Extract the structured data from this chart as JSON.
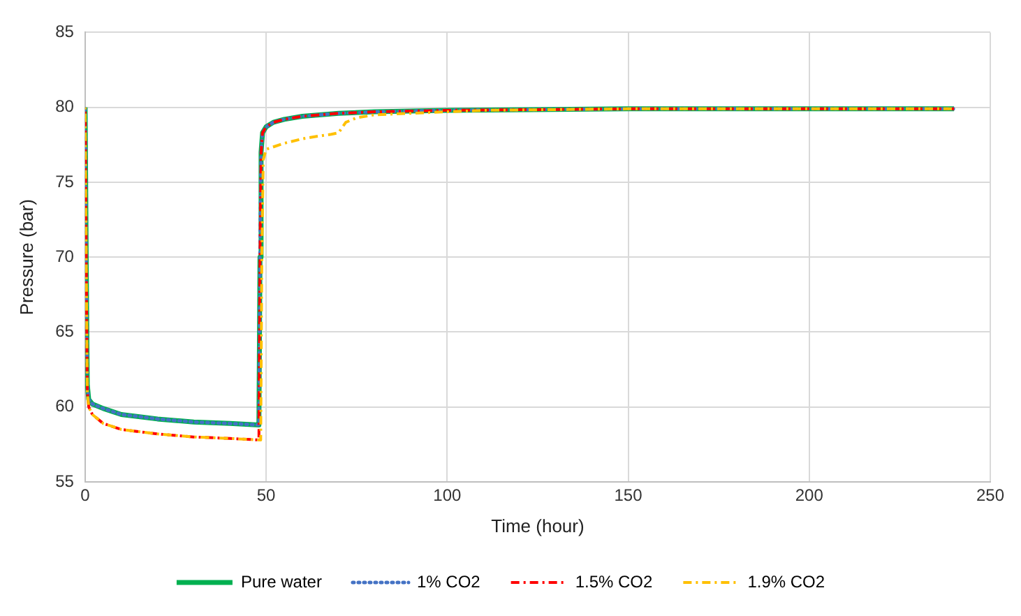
{
  "chart_data": {
    "type": "line",
    "xlabel": "Time (hour)",
    "ylabel": "Pressure (bar)",
    "xlim": [
      0,
      250
    ],
    "xticks": [
      0,
      50,
      100,
      150,
      200,
      250
    ],
    "ylim": [
      55,
      85
    ],
    "yticks": [
      55,
      60,
      65,
      70,
      75,
      80,
      85
    ],
    "grid": true,
    "legend": "bottom",
    "marker": "none",
    "series": [
      {
        "name": "Pure water",
        "color": "#00b050",
        "line_style": "solid",
        "x": [
          0,
          0.3,
          0.6,
          1,
          2,
          5,
          10,
          20,
          30,
          40,
          48,
          48.3,
          48.6,
          49,
          50,
          52,
          55,
          60,
          70,
          80,
          100,
          150,
          200,
          240
        ],
        "values": [
          80,
          70,
          61.5,
          60.5,
          60.2,
          59.9,
          59.5,
          59.2,
          59,
          58.9,
          58.8,
          70,
          77,
          78.3,
          78.7,
          79,
          79.2,
          79.4,
          79.6,
          79.7,
          79.8,
          79.9,
          79.9,
          79.9
        ]
      },
      {
        "name": "1% CO2",
        "color": "#4472c4",
        "line_style": "dotted",
        "x": [
          0,
          0.3,
          0.6,
          1,
          2,
          5,
          10,
          20,
          30,
          40,
          48,
          48.3,
          48.6,
          49,
          50,
          52,
          55,
          60,
          70,
          80,
          100,
          150,
          200,
          240
        ],
        "values": [
          80,
          70,
          61.5,
          60.5,
          60.2,
          59.9,
          59.5,
          59.2,
          59,
          58.9,
          58.8,
          70,
          77,
          78.3,
          78.7,
          79,
          79.2,
          79.4,
          79.6,
          79.7,
          79.8,
          79.9,
          79.9,
          79.9
        ]
      },
      {
        "name": "1.5% CO2",
        "color": "#ff0000",
        "line_style": "dashdot",
        "x": [
          0,
          0.3,
          0.6,
          1,
          2,
          5,
          10,
          20,
          30,
          40,
          48,
          48.3,
          48.6,
          49,
          50,
          52,
          55,
          60,
          70,
          80,
          100,
          150,
          200,
          240
        ],
        "values": [
          80,
          70,
          61,
          60,
          59.5,
          58.9,
          58.5,
          58.2,
          58,
          57.9,
          57.8,
          70,
          77,
          78.3,
          78.7,
          79,
          79.2,
          79.4,
          79.6,
          79.7,
          79.8,
          79.9,
          79.9,
          79.9
        ]
      },
      {
        "name": "1.9% CO2",
        "color": "#ffc000",
        "line_style": "dashdot",
        "x": [
          0,
          0.3,
          0.6,
          1,
          2,
          5,
          10,
          20,
          30,
          40,
          48.5,
          48.8,
          49.2,
          50,
          55,
          60,
          65,
          68,
          70,
          72,
          75,
          80,
          90,
          110,
          150,
          200,
          240
        ],
        "values": [
          80,
          70,
          61,
          60,
          59.5,
          58.9,
          58.5,
          58.2,
          58,
          57.9,
          57.8,
          70,
          76.5,
          77.2,
          77.6,
          77.9,
          78.1,
          78.2,
          78.3,
          79,
          79.3,
          79.5,
          79.6,
          79.8,
          79.9,
          79.9,
          79.9
        ]
      }
    ]
  }
}
